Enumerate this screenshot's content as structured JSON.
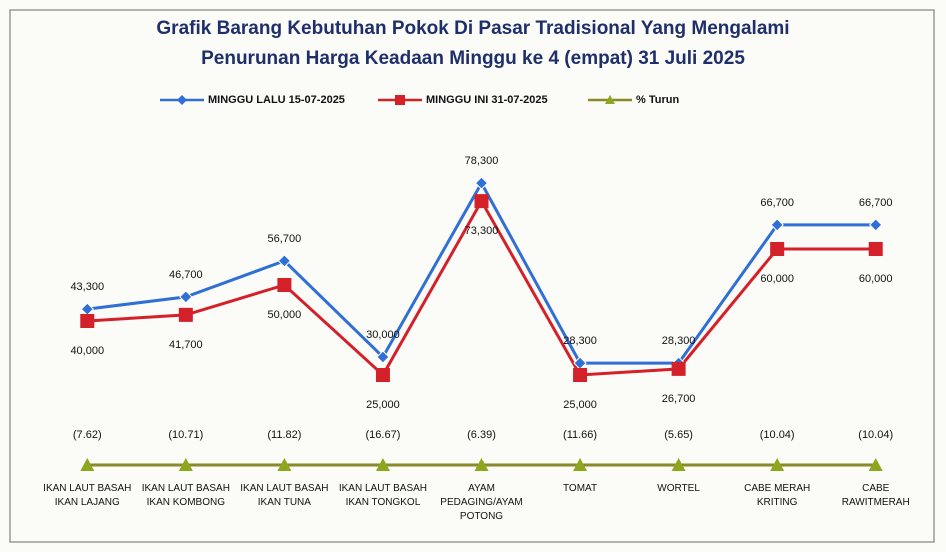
{
  "chart_data": {
    "type": "line",
    "title": "Grafik  Barang Kebutuhan Pokok Di Pasar Tradisional Yang Mengalami",
    "subtitle": "Penurunan Harga Keadaan Minggu ke 4 (empat)  31 Juli 2025",
    "categories": [
      "IKAN LAUT BASAH IKAN LAJANG",
      "IKAN LAUT BASAH IKAN KOMBONG",
      "IKAN LAUT BASAH IKAN TUNA",
      "IKAN LAUT BASAH IKAN TONGKOL",
      "AYAM PEDAGING/AYAM POTONG",
      "TOMAT",
      "WORTEL",
      "CABE MERAH KRITING",
      "CABE RAWITMERAH"
    ],
    "series": [
      {
        "name": "MINGGU LALU 15-07-2025",
        "color": "#2f6fd6",
        "marker": "diamond",
        "values": [
          43300,
          46700,
          56700,
          30000,
          78300,
          28300,
          28300,
          66700,
          66700
        ],
        "value_labels": [
          "43,300",
          "46,700",
          "56,700",
          "30,000",
          "78,300",
          "28,300",
          "28,300",
          "66,700",
          "66,700"
        ]
      },
      {
        "name": "MINGGU INI 31-07-2025",
        "color": "#d42028",
        "marker": "square",
        "values": [
          40000,
          41700,
          50000,
          25000,
          73300,
          25000,
          26700,
          60000,
          60000
        ],
        "value_labels": [
          "40,000",
          "41,700",
          "50,000",
          "25,000",
          "73,300",
          "25,000",
          "26,700",
          "60,000",
          "60,000"
        ]
      },
      {
        "name": "% Turun",
        "color": "#8ea61e",
        "marker": "triangle",
        "values": [
          -7.62,
          -10.71,
          -11.82,
          -16.67,
          -6.39,
          -11.66,
          -5.65,
          -10.04,
          -10.04
        ],
        "value_labels": [
          "(7.62)",
          "(10.71)",
          "(11.82)",
          "(16.67)",
          "(6.39)",
          "(11.66)",
          "(5.65)",
          "(10.04)",
          "(10.04)"
        ]
      }
    ],
    "ylim": [
      -4000,
      100000
    ],
    "legend": "top"
  }
}
